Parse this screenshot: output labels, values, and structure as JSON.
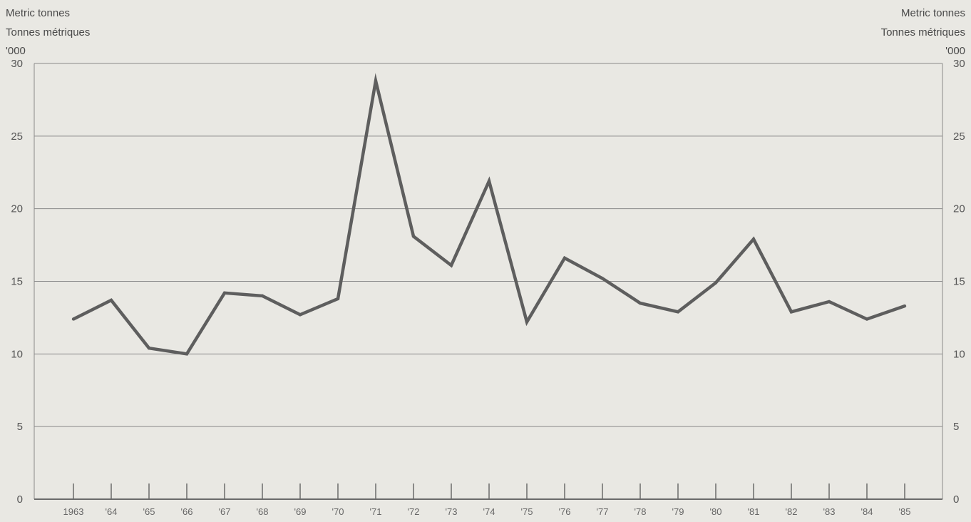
{
  "chart_data": {
    "type": "line",
    "unit_left": [
      "Metric tonnes",
      "Tonnes métriques",
      "'000"
    ],
    "unit_right": [
      "Metric tonnes",
      "Tonnes métriques",
      "'000"
    ],
    "ylim": [
      0,
      30
    ],
    "yticks": [
      0,
      5,
      10,
      15,
      20,
      25,
      30
    ],
    "grid": true,
    "categories": [
      "1963",
      "'64",
      "'65",
      "'66",
      "'67",
      "'68",
      "'69",
      "'70",
      "'71",
      "'72",
      "'73",
      "'74",
      "'75",
      "'76",
      "'77",
      "'78",
      "'79",
      "'80",
      "'81",
      "'82",
      "'83",
      "'84",
      "'85"
    ],
    "values": [
      12.4,
      13.7,
      10.4,
      10.0,
      14.2,
      14.0,
      12.7,
      13.8,
      28.8,
      18.1,
      16.1,
      21.9,
      12.2,
      16.6,
      15.2,
      13.5,
      12.9,
      14.9,
      17.9,
      12.9,
      13.6,
      12.4,
      13.3
    ],
    "colors": {
      "line": "#5e5e5e",
      "grid": "#8a8a8a",
      "axis": "#6a6a6a"
    }
  }
}
